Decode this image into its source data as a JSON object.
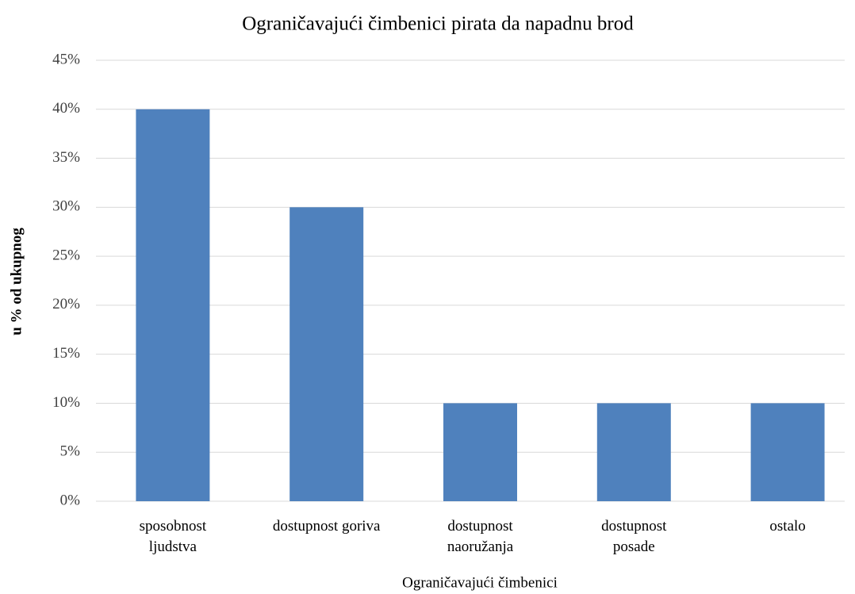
{
  "chart_data": {
    "type": "bar",
    "title": "Ograničavajući čimbenici pirata da napadnu brod",
    "x_label": "Ograničavajući čimbenici",
    "y_label": "u % od ukupnog",
    "categories": [
      "sposobnost\nljudstva",
      "dostupnost goriva",
      "dostupnost\nnaoružanja",
      "dostupnost\nposade",
      "ostalo"
    ],
    "values": [
      40,
      30,
      10,
      10,
      10
    ],
    "color": "#4f81bd",
    "ylim": [
      0,
      45
    ],
    "yticks": [
      {
        "value": 0,
        "label": "0%"
      },
      {
        "value": 5,
        "label": "5%"
      },
      {
        "value": 10,
        "label": "10%"
      },
      {
        "value": 15,
        "label": "15%"
      },
      {
        "value": 20,
        "label": "20%"
      },
      {
        "value": 25,
        "label": "25%"
      },
      {
        "value": 30,
        "label": "30%"
      },
      {
        "value": 35,
        "label": "35%"
      },
      {
        "value": 40,
        "label": "40%"
      },
      {
        "value": 45,
        "label": "45%"
      }
    ],
    "grid": true
  }
}
